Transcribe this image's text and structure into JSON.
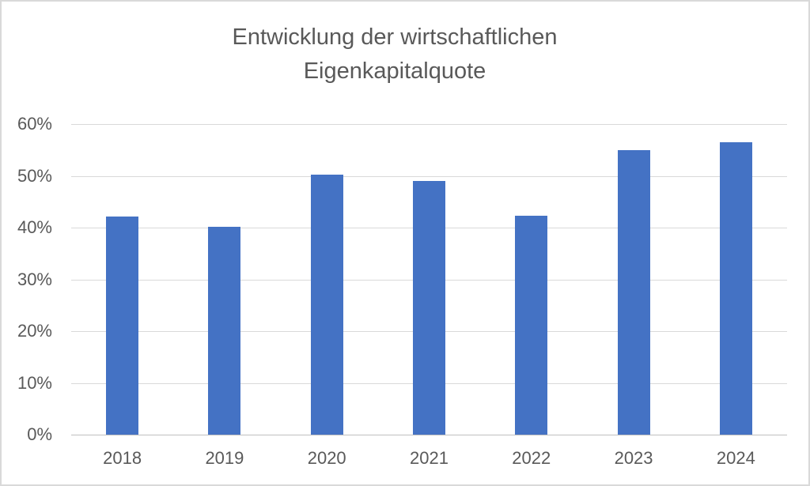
{
  "chart_data": {
    "type": "bar",
    "title": "Entwicklung der wirtschaftlichen Eigenkapitalquote",
    "title_lines": [
      "Entwicklung der wirtschaftlichen",
      "Eigenkapitalquote"
    ],
    "categories": [
      "2018",
      "2019",
      "2020",
      "2021",
      "2022",
      "2023",
      "2024"
    ],
    "values": [
      42.2,
      40.1,
      50.3,
      49.0,
      42.3,
      55.0,
      56.5
    ],
    "unit": "%",
    "xlabel": "",
    "ylabel": "",
    "ylim": [
      0,
      60
    ],
    "y_tick_step": 10,
    "y_tick_labels": [
      "0%",
      "10%",
      "20%",
      "30%",
      "40%",
      "50%",
      "60%"
    ],
    "grid": "horizontal",
    "legend": "none"
  },
  "colors": {
    "bar": "#4472C4",
    "gridline": "#D9D9D9",
    "axis_line": "#BFBFBF",
    "text": "#595959",
    "frame_border": "#D9D9D9",
    "background": "#FFFFFF"
  }
}
